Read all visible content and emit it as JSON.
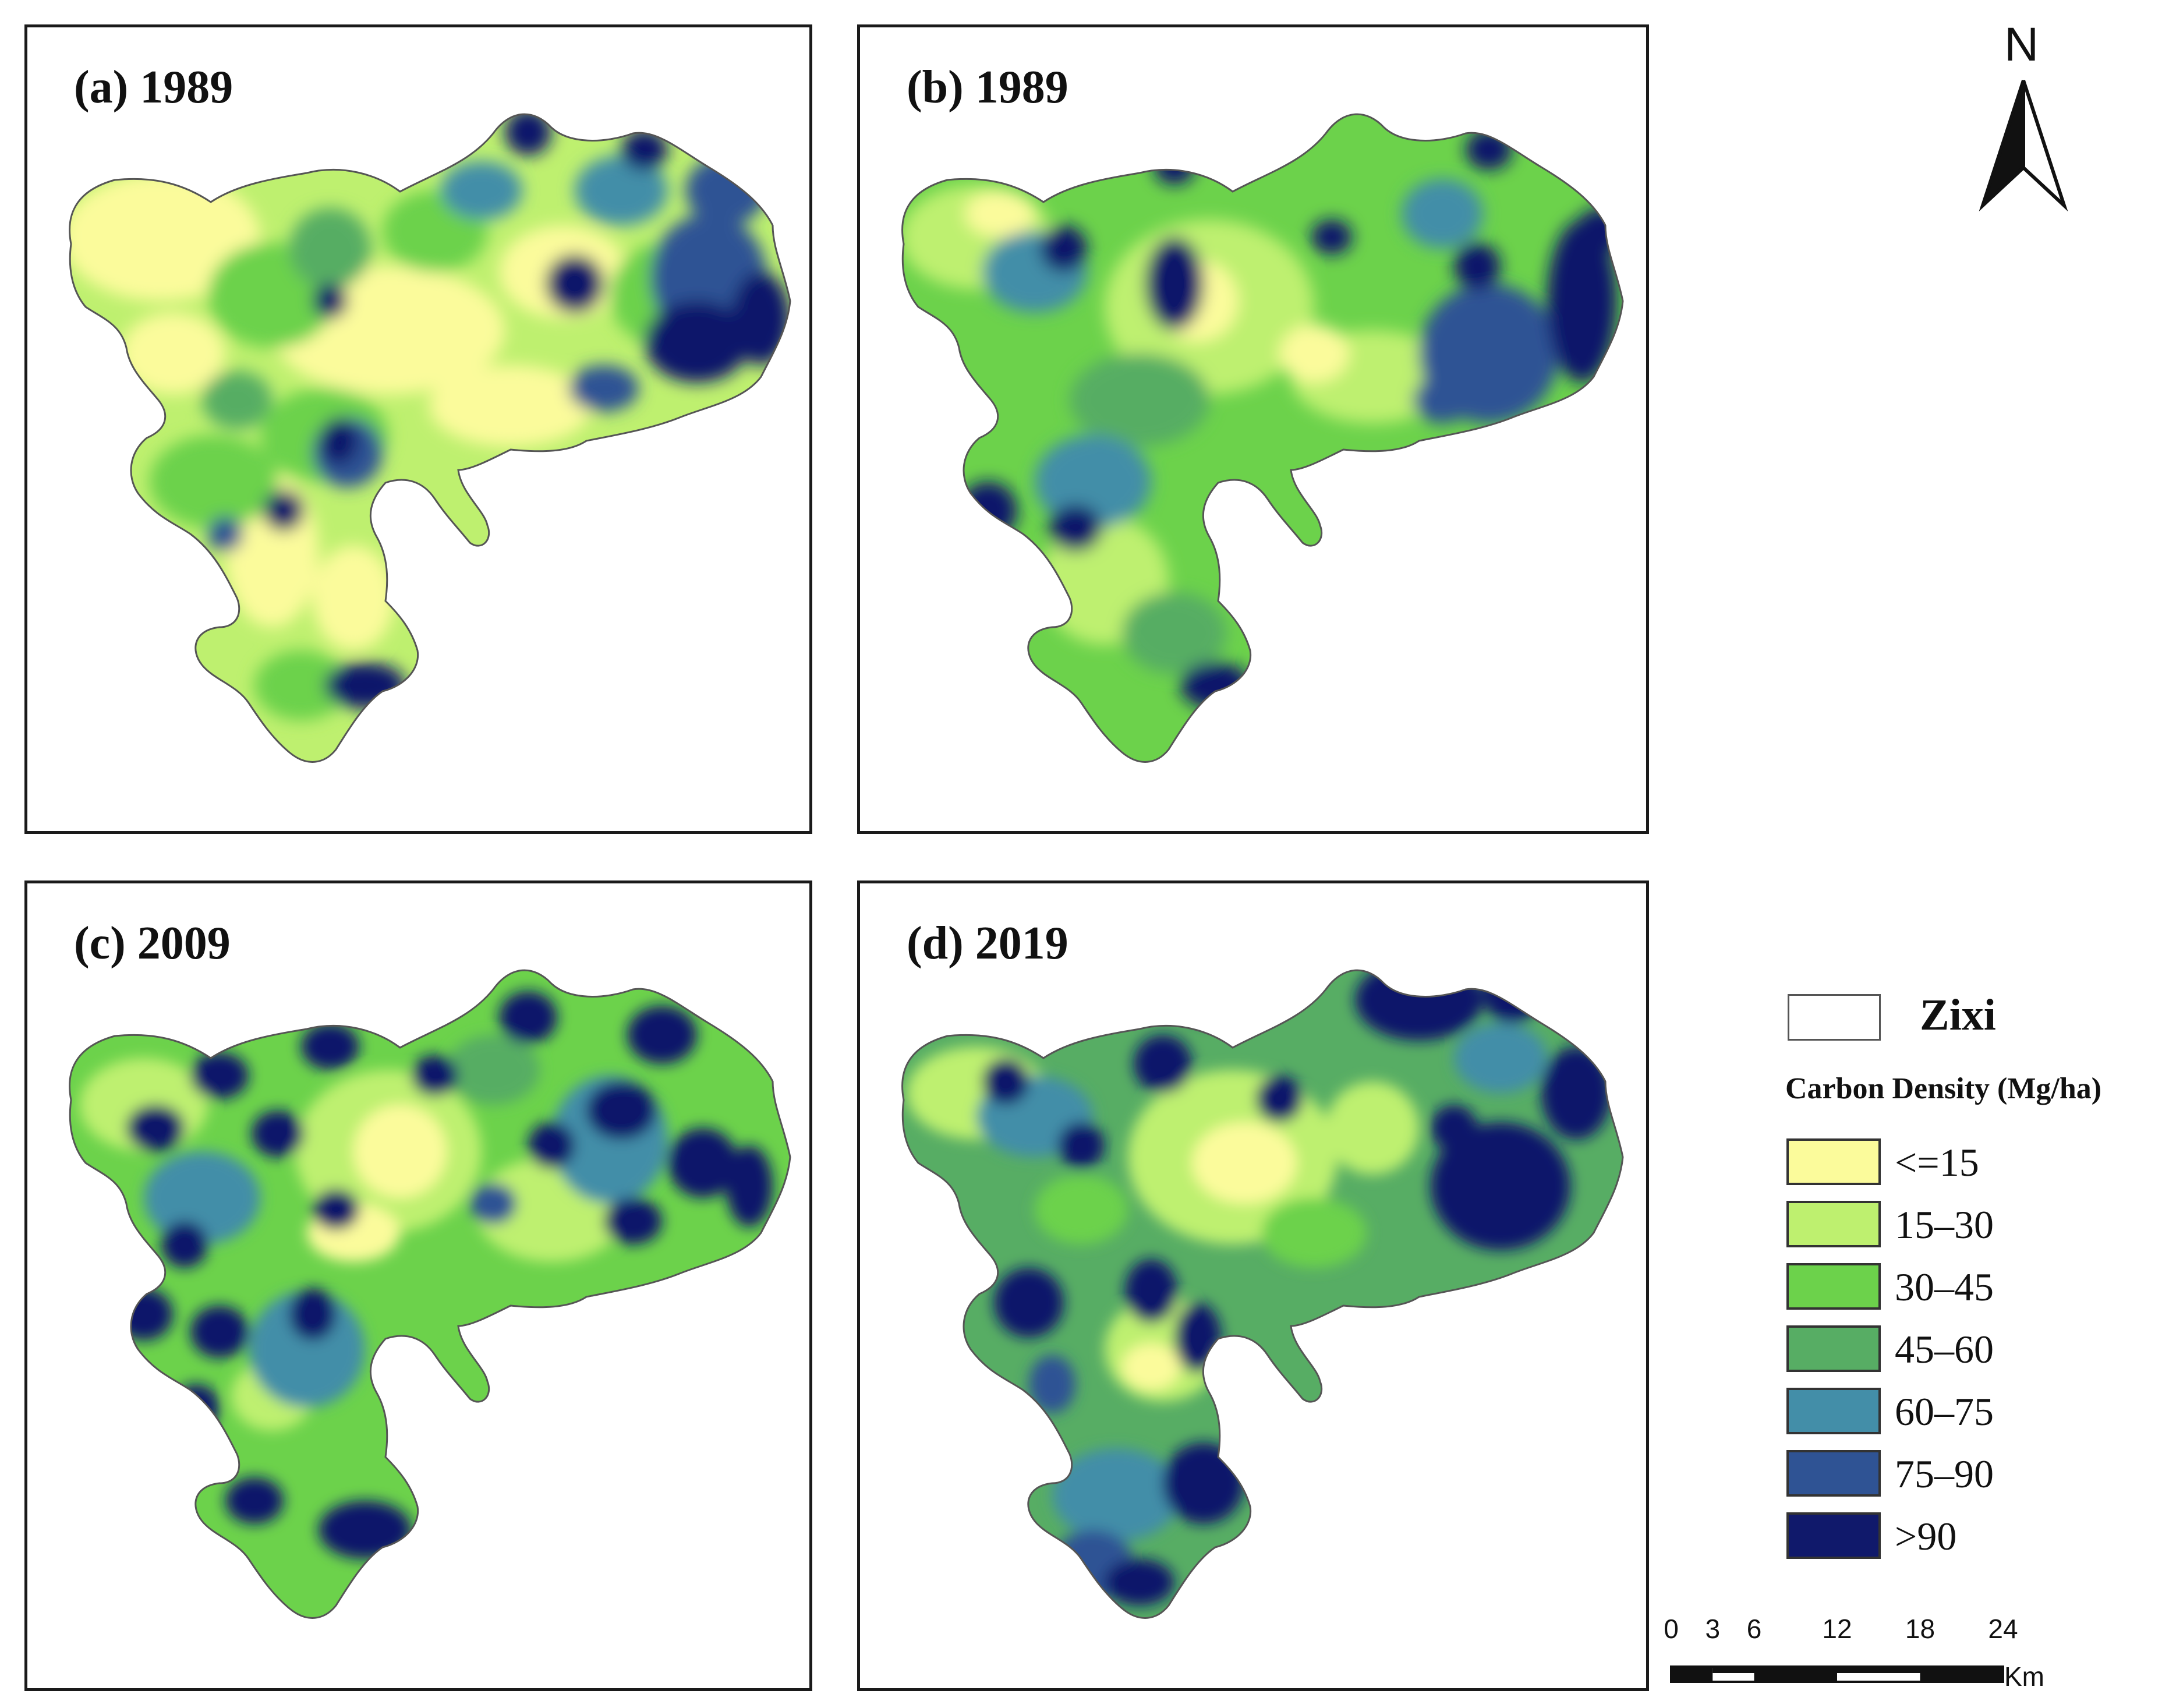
{
  "panels": [
    {
      "id": "a",
      "title": "(a) 1989"
    },
    {
      "id": "b",
      "title": "(b) 1989"
    },
    {
      "id": "c",
      "title": "(c) 2009"
    },
    {
      "id": "d",
      "title": "(d) 2019"
    }
  ],
  "north_arrow": {
    "label": "N",
    "icon": "north-arrow-icon"
  },
  "legend": {
    "boundary_label": "Zixi",
    "title": "Carbon Density (Mg/ha)",
    "classes": [
      {
        "label": "<=15",
        "color": "#fbfb9b"
      },
      {
        "label": "15–30",
        "color": "#bef06f"
      },
      {
        "label": "30–45",
        "color": "#6cd24b"
      },
      {
        "label": "45–60",
        "color": "#57ad64"
      },
      {
        "label": "60–75",
        "color": "#438ea8"
      },
      {
        "label": "75–90",
        "color": "#2f5394"
      },
      {
        "label": ">90",
        "color": "#10196b"
      }
    ]
  },
  "scale_bar": {
    "ticks": [
      "0",
      "3",
      "6",
      "12",
      "18",
      "24"
    ],
    "tick_values": [
      0,
      3,
      6,
      12,
      18,
      24
    ],
    "unit": "Km"
  }
}
